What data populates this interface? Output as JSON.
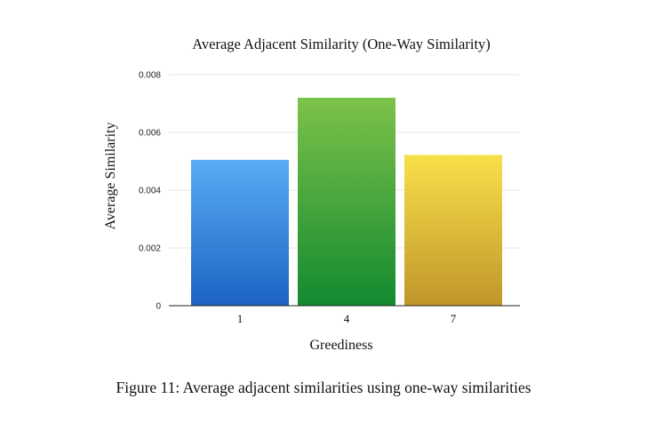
{
  "chart_data": {
    "type": "bar",
    "title": "Average Adjacent Similarity (One-Way Similarity)",
    "xlabel": "Greediness",
    "ylabel": "Average Similarity",
    "categories": [
      "1",
      "4",
      "7"
    ],
    "values": [
      0.00505,
      0.0072,
      0.00522
    ],
    "ylim": [
      0,
      0.008
    ],
    "yticks": [
      0,
      0.002,
      0.004,
      0.006,
      0.008
    ],
    "ytick_labels": [
      "0",
      "0.002",
      "0.004",
      "0.006",
      "0.008"
    ],
    "grid": true,
    "bar_colors": [
      {
        "top": "#5aabf5",
        "bottom": "#1c63c3"
      },
      {
        "top": "#7cc24a",
        "bottom": "#138a30"
      },
      {
        "top": "#f8e04a",
        "bottom": "#c0962a"
      }
    ]
  },
  "caption": "Figure 11: Average adjacent similarities using one-way similarities"
}
